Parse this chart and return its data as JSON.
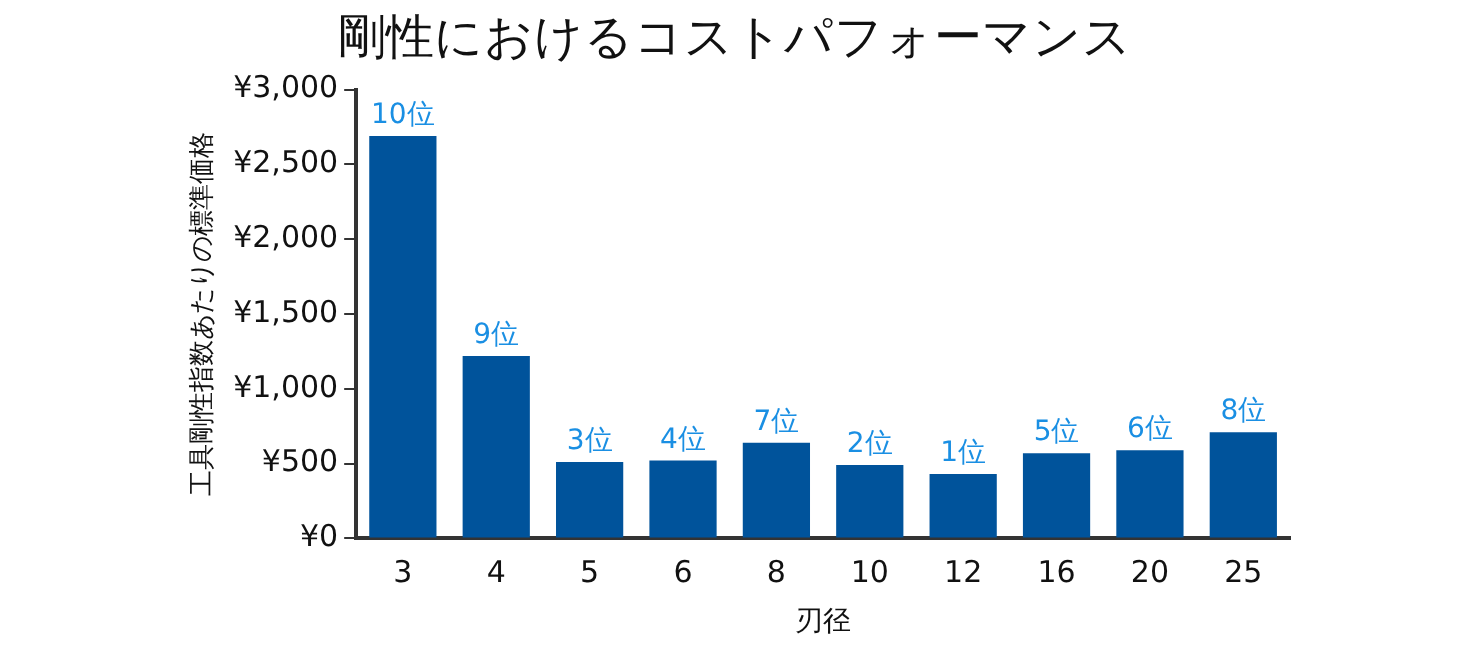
{
  "chart_data": {
    "type": "bar",
    "title": "剛性におけるコストパフォーマンス",
    "xlabel": "刃径",
    "ylabel": "工具剛性指数あたりの標準価格",
    "categories": [
      "3",
      "4",
      "5",
      "6",
      "8",
      "10",
      "12",
      "16",
      "20",
      "25"
    ],
    "values": [
      2690,
      1220,
      510,
      520,
      640,
      490,
      430,
      570,
      590,
      710
    ],
    "annotations": [
      {
        "text": "10位",
        "x": "3",
        "y": 2690
      },
      {
        "text": "9位",
        "x": "4",
        "y": 1220
      },
      {
        "text": "3位",
        "x": "5",
        "y": 510
      },
      {
        "text": "4位",
        "x": "6",
        "y": 520
      },
      {
        "text": "7位",
        "x": "8",
        "y": 640
      },
      {
        "text": "2位",
        "x": "10",
        "y": 490
      },
      {
        "text": "1位",
        "x": "12",
        "y": 430
      },
      {
        "text": "5位",
        "x": "16",
        "y": 570
      },
      {
        "text": "6位",
        "x": "20",
        "y": 590
      },
      {
        "text": "8位",
        "x": "25",
        "y": 710
      }
    ],
    "color": "#00539b",
    "ylim": [
      0,
      3000
    ],
    "yticks": [
      {
        "value": 0,
        "label": "¥0"
      },
      {
        "value": 500,
        "label": "¥500"
      },
      {
        "value": 1000,
        "label": "¥1,000"
      },
      {
        "value": 1500,
        "label": "¥1,500"
      },
      {
        "value": 2000,
        "label": "¥2,000"
      },
      {
        "value": 2500,
        "label": "¥2,500"
      },
      {
        "value": 3000,
        "label": "¥3,000"
      }
    ],
    "grid": false,
    "legend": false
  }
}
